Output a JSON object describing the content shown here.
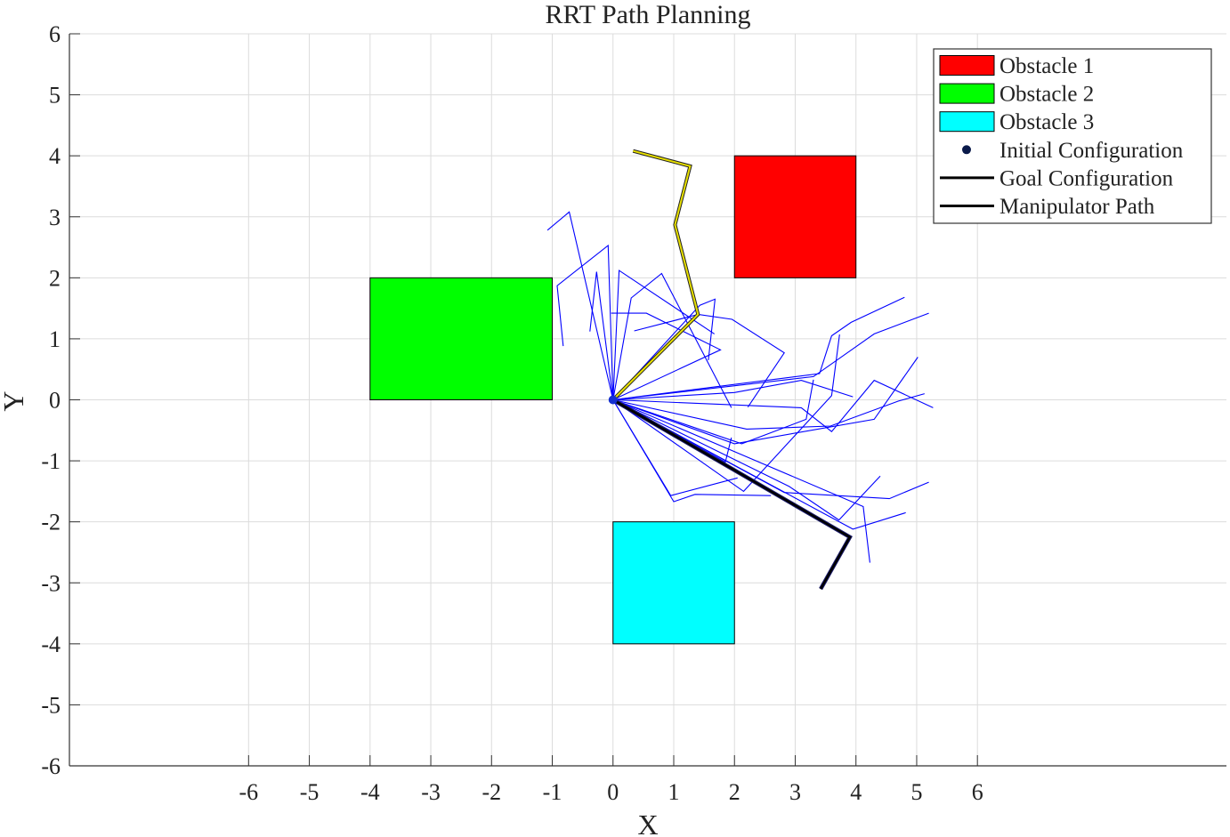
{
  "chart_data": {
    "type": "line",
    "title": "RRT Path Planning",
    "xlabel": "X",
    "ylabel": "Y",
    "xlim": [
      -8.95,
      10.1
    ],
    "ylim": [
      -6,
      6
    ],
    "x_ticks": [
      -6,
      -5,
      -4,
      -3,
      -2,
      -1,
      0,
      1,
      2,
      3,
      4,
      5,
      6
    ],
    "y_ticks": [
      -6,
      -5,
      -4,
      -3,
      -2,
      -1,
      0,
      1,
      2,
      3,
      4,
      5,
      6
    ],
    "grid": true,
    "legend_position": "top-right",
    "colors": {
      "obstacle1": "#ff0000",
      "obstacle2": "#00ff00",
      "obstacle3": "#00ffff",
      "tree": "#0000ff",
      "initial": "#0a1a4a",
      "goal": "#000000",
      "path": "#000000",
      "start_arm": "#e8e000"
    },
    "obstacles": [
      {
        "name": "Obstacle 1",
        "x": [
          2,
          4
        ],
        "y": [
          2,
          4
        ]
      },
      {
        "name": "Obstacle 2",
        "x": [
          -4,
          -1
        ],
        "y": [
          0,
          2
        ]
      },
      {
        "name": "Obstacle 3",
        "x": [
          0,
          2
        ],
        "y": [
          -4,
          -2
        ]
      }
    ],
    "initial_configuration": [
      0,
      0
    ],
    "start_arm": [
      [
        0,
        0
      ],
      [
        1.4,
        1.4
      ],
      [
        1.02,
        2.87
      ],
      [
        1.27,
        3.83
      ],
      [
        0.33,
        4.08
      ]
    ],
    "goal_configuration": [
      [
        0,
        0
      ],
      [
        3.9,
        -2.25
      ],
      [
        3.42,
        -3.1
      ]
    ],
    "manipulator_path": [
      [
        0,
        0
      ],
      [
        3.9,
        -2.25
      ],
      [
        3.42,
        -3.1
      ]
    ],
    "tree_branches": [
      [
        [
          0,
          0
        ],
        [
          -0.72,
          3.08
        ],
        [
          -1.08,
          2.78
        ]
      ],
      [
        [
          0,
          0
        ],
        [
          -0.08,
          2.53
        ],
        [
          -0.92,
          1.87
        ],
        [
          -0.82,
          0.88
        ]
      ],
      [
        [
          0,
          0
        ],
        [
          0.1,
          2.12
        ],
        [
          1.67,
          1.08
        ]
      ],
      [
        [
          0,
          0
        ],
        [
          -0.27,
          2.1
        ],
        [
          -0.38,
          1.12
        ]
      ],
      [
        [
          0,
          0
        ],
        [
          0.3,
          1.67
        ],
        [
          0.8,
          2.07
        ],
        [
          1.95,
          -0.13
        ]
      ],
      [
        [
          0,
          0
        ],
        [
          1.4,
          1.4
        ],
        [
          0.35,
          1.13
        ]
      ],
      [
        [
          0,
          0
        ],
        [
          1.43,
          1.55
        ],
        [
          1.68,
          1.65
        ],
        [
          1.57,
          0.65
        ]
      ],
      [
        [
          0,
          0
        ],
        [
          1.77,
          0.82
        ],
        [
          0.55,
          1.42
        ],
        [
          -0.03,
          1.42
        ]
      ],
      [
        [
          0,
          0
        ],
        [
          1.4,
          1.4
        ],
        [
          1.96,
          1.32
        ],
        [
          2.82,
          0.77
        ],
        [
          2.22,
          -0.12
        ]
      ],
      [
        [
          0,
          0
        ],
        [
          2.0,
          0.12
        ],
        [
          3.1,
          0.32
        ],
        [
          3.95,
          0.05
        ]
      ],
      [
        [
          0,
          0
        ],
        [
          3.4,
          0.43
        ],
        [
          3.6,
          1.05
        ],
        [
          3.92,
          1.27
        ],
        [
          4.8,
          1.68
        ]
      ],
      [
        [
          0,
          0
        ],
        [
          3.3,
          0.38
        ],
        [
          4.3,
          1.08
        ],
        [
          5.2,
          1.42
        ]
      ],
      [
        [
          0,
          0
        ],
        [
          3.1,
          -0.13
        ],
        [
          3.6,
          -0.52
        ],
        [
          4.3,
          0.32
        ],
        [
          5.27,
          -0.13
        ]
      ],
      [
        [
          0,
          0
        ],
        [
          2.2,
          -0.48
        ],
        [
          3.58,
          -0.43
        ],
        [
          4.7,
          -0.02
        ],
        [
          5.13,
          0.1
        ]
      ],
      [
        [
          0,
          0
        ],
        [
          2.0,
          -0.72
        ],
        [
          4.3,
          -0.32
        ],
        [
          5.02,
          0.7
        ]
      ],
      [
        [
          0,
          0
        ],
        [
          2.12,
          -0.72
        ],
        [
          3.18,
          -0.32
        ],
        [
          3.3,
          0.33
        ]
      ],
      [
        [
          0,
          0
        ],
        [
          2.15,
          -1.5
        ],
        [
          3.6,
          0.07
        ],
        [
          3.73,
          1.07
        ]
      ],
      [
        [
          0,
          0
        ],
        [
          2.82,
          -1.52
        ],
        [
          4.55,
          -1.62
        ],
        [
          5.2,
          -1.35
        ]
      ],
      [
        [
          0,
          0
        ],
        [
          4.12,
          -1.75
        ],
        [
          4.23,
          -2.67
        ]
      ],
      [
        [
          0,
          0
        ],
        [
          2.9,
          -1.42
        ],
        [
          3.72,
          -1.97
        ],
        [
          4.4,
          -1.25
        ]
      ],
      [
        [
          0,
          0
        ],
        [
          3.95,
          -2.12
        ],
        [
          4.82,
          -1.85
        ]
      ],
      [
        [
          0,
          0
        ],
        [
          1.0,
          -1.67
        ],
        [
          1.35,
          -1.55
        ],
        [
          2.6,
          -1.57
        ]
      ],
      [
        [
          0,
          0
        ],
        [
          0.95,
          -1.57
        ],
        [
          2.05,
          -1.28
        ]
      ],
      [
        [
          0,
          0
        ],
        [
          1.85,
          -1.02
        ],
        [
          1.95,
          -0.62
        ]
      ]
    ],
    "legend": [
      {
        "label": "Obstacle 1",
        "kind": "patch",
        "color": "#ff0000"
      },
      {
        "label": "Obstacle 2",
        "kind": "patch",
        "color": "#00ff00"
      },
      {
        "label": "Obstacle 3",
        "kind": "patch",
        "color": "#00ffff"
      },
      {
        "label": "Initial Configuration",
        "kind": "marker",
        "color": "#0a1a4a"
      },
      {
        "label": "Goal Configuration",
        "kind": "line",
        "color": "#000000"
      },
      {
        "label": "Manipulator Path",
        "kind": "line",
        "color": "#000000"
      }
    ]
  }
}
